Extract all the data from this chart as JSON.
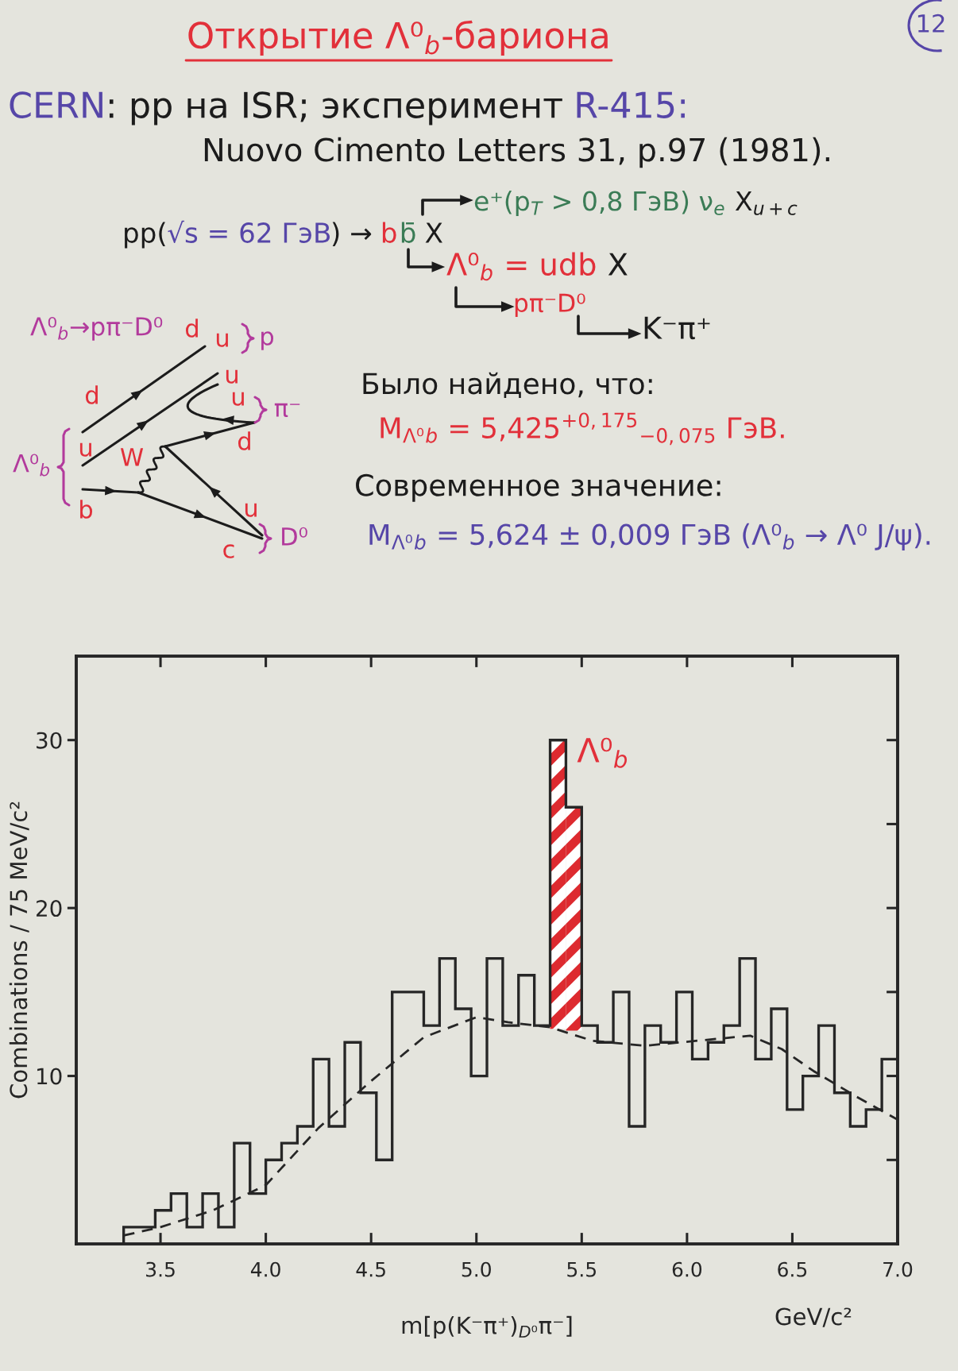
{
  "chart_data": {
    "type": "histogram",
    "title": "Открытие Λ⁰$_{b}$-бариона",
    "xlabel": "m[p(K⁻π⁺)$_{D⁰}$π⁻]",
    "ylabel": "Combinations / 75 MeV/c²",
    "bins": [
      3.325,
      3.4,
      3.475,
      3.55,
      3.625,
      3.7,
      3.775,
      3.85,
      3.925,
      4.0,
      4.075,
      4.15,
      4.225,
      4.3,
      4.375,
      4.45,
      4.525,
      4.6,
      4.675,
      4.75,
      4.825,
      4.9,
      4.975,
      5.05,
      5.125,
      5.2,
      5.275,
      5.35,
      5.425,
      5.5,
      5.575,
      5.65,
      5.725,
      5.8,
      5.875,
      5.95,
      6.025,
      6.1,
      6.175,
      6.25,
      6.325,
      6.4,
      6.475,
      6.55,
      6.625,
      6.7,
      6.775,
      6.85,
      6.925,
      7.0
    ],
    "series": [
      {
        "color": "#262626",
        "values": [
          1,
          1,
          2,
          3,
          1,
          3,
          1,
          6,
          3,
          5,
          6,
          7,
          11,
          7,
          12,
          9,
          5,
          15,
          15,
          13,
          17,
          14,
          10,
          17,
          13,
          16,
          13,
          30,
          26,
          13,
          12,
          15,
          7,
          13,
          12,
          15,
          11,
          12,
          13,
          17,
          11,
          14,
          8,
          10,
          13,
          9,
          7,
          8,
          11
        ]
      },
      {
        "type": "bar",
        "x": [
          5.3875,
          5.4625
        ],
        "base": [
          12.8,
          12.7
        ],
        "values": [
          17.2,
          13.3
        ],
        "color": "#dd2a2f"
      },
      {
        "type": "line",
        "x": [
          3.325,
          3.5,
          3.75,
          4.0,
          4.25,
          4.5,
          4.75,
          5.0,
          5.15,
          5.35,
          5.55,
          5.8,
          6.05,
          6.3,
          6.45,
          6.6,
          6.8,
          7.0
        ],
        "values": [
          0.5,
          1.0,
          2.0,
          3.5,
          6.9,
          9.7,
          12.3,
          13.5,
          13.2,
          12.9,
          12.1,
          11.8,
          12.1,
          12.4,
          11.6,
          10.3,
          8.8,
          7.4
        ],
        "color": "#262626",
        "line_style": "dashed"
      }
    ],
    "xlim": [
      3.1,
      7.0
    ],
    "ylim": [
      0,
      35
    ],
    "xticks": [
      3.5,
      {
        "value": 4,
        "label": "4.0"
      },
      4.5,
      {
        "value": 5,
        "label": "5.0"
      },
      5.5,
      {
        "value": 6,
        "label": "6.0"
      },
      6.5,
      {
        "value": 7,
        "label": "7.0"
      }
    ],
    "yticks": [
      {
        "value": 5,
        "label": null
      },
      10,
      {
        "value": 15,
        "label": null
      },
      20,
      {
        "value": 25,
        "label": null
      },
      30
    ],
    "annotations": [
      "12",
      "CERN",
      ": pp на ISR; эксперимент",
      "R-415:",
      "Nuovo Cimento Letters 31, p.97 (1981).",
      "e⁺(p$_{T}$ > 0,8 ГэВ) ν$_{e}$",
      "X$_{u+c}$",
      "pp(",
      "√s = 62 ГэВ",
      ") →",
      "b",
      "b̄",
      "X",
      "Λ⁰$_{b}$ = udb",
      "X",
      "pπ⁻D⁰",
      "K⁻π⁺",
      "Было найдено, что:",
      "M$_{Λ⁰}$$_{b}$ = 5,425$^{+0,175}$$_{−0,075}$ ГэВ.",
      "Современное значение:",
      "M$_{Λ⁰}$$_{b}$ = 5,624 ± 0,009 ГэВ (Λ⁰$_{b}$ → Λ⁰ J/ψ).",
      "Λ⁰$_{b}$→pπ⁻D⁰",
      "d",
      "u",
      "p",
      "d",
      "u",
      "u",
      "π⁻",
      "d",
      "u",
      "W",
      "Λ⁰$_{b}$",
      "u",
      "b",
      "c",
      "D⁰",
      "GeV/c²",
      {
        "text": "Λ⁰$_{b}$",
        "x": 5.425,
        "y": 30
      }
    ]
  }
}
